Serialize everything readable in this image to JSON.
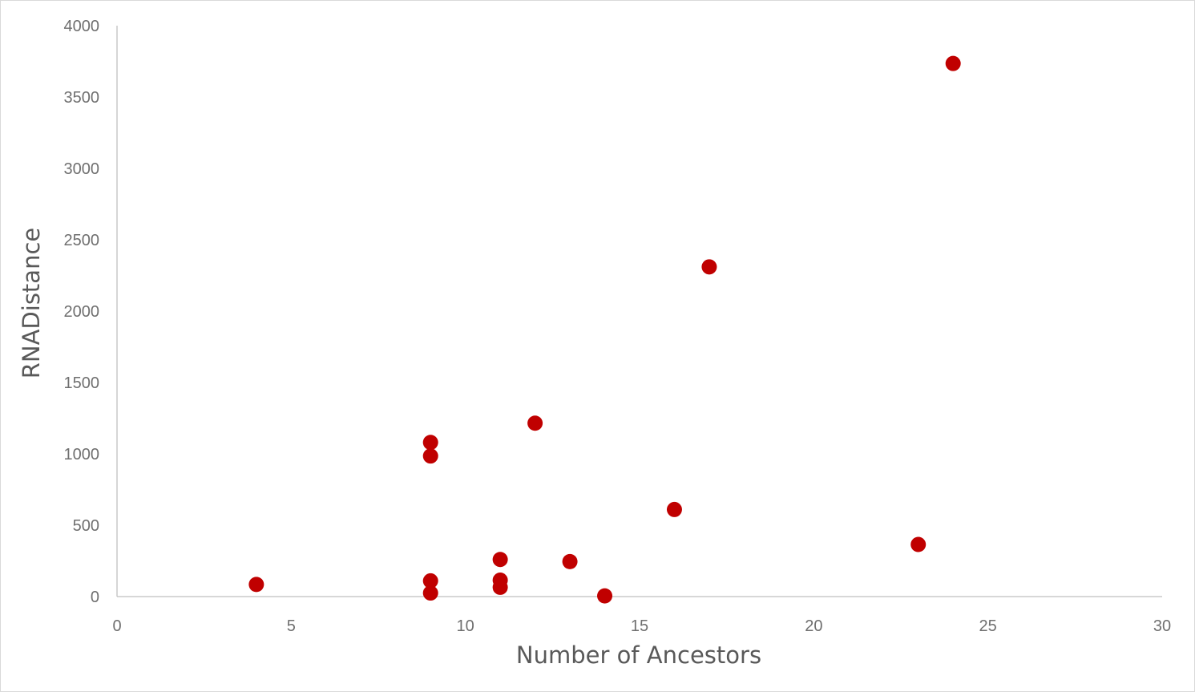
{
  "chart_data": {
    "type": "scatter",
    "title": "",
    "xlabel": "Number of Ancestors",
    "ylabel": "RNADistance",
    "xlim": [
      0,
      30
    ],
    "ylim": [
      0,
      4000
    ],
    "x_ticks": [
      "0",
      "5",
      "10",
      "15",
      "20",
      "25",
      "30"
    ],
    "y_ticks": [
      "0",
      "500",
      "1000",
      "1500",
      "2000",
      "2500",
      "3000",
      "3500",
      "4000"
    ],
    "grid": false,
    "legend": "none",
    "series": [
      {
        "color": "#c00000",
        "points": [
          {
            "x": 4,
            "y": 85
          },
          {
            "x": 9,
            "y": 1080
          },
          {
            "x": 9,
            "y": 985
          },
          {
            "x": 9,
            "y": 110
          },
          {
            "x": 9,
            "y": 25
          },
          {
            "x": 11,
            "y": 260
          },
          {
            "x": 11,
            "y": 115
          },
          {
            "x": 11,
            "y": 65
          },
          {
            "x": 12,
            "y": 1215
          },
          {
            "x": 13,
            "y": 245
          },
          {
            "x": 14,
            "y": 5
          },
          {
            "x": 16,
            "y": 610
          },
          {
            "x": 17,
            "y": 2310
          },
          {
            "x": 23,
            "y": 365
          },
          {
            "x": 24,
            "y": 3735
          }
        ]
      }
    ],
    "axis_color": "#bfbfbf"
  }
}
